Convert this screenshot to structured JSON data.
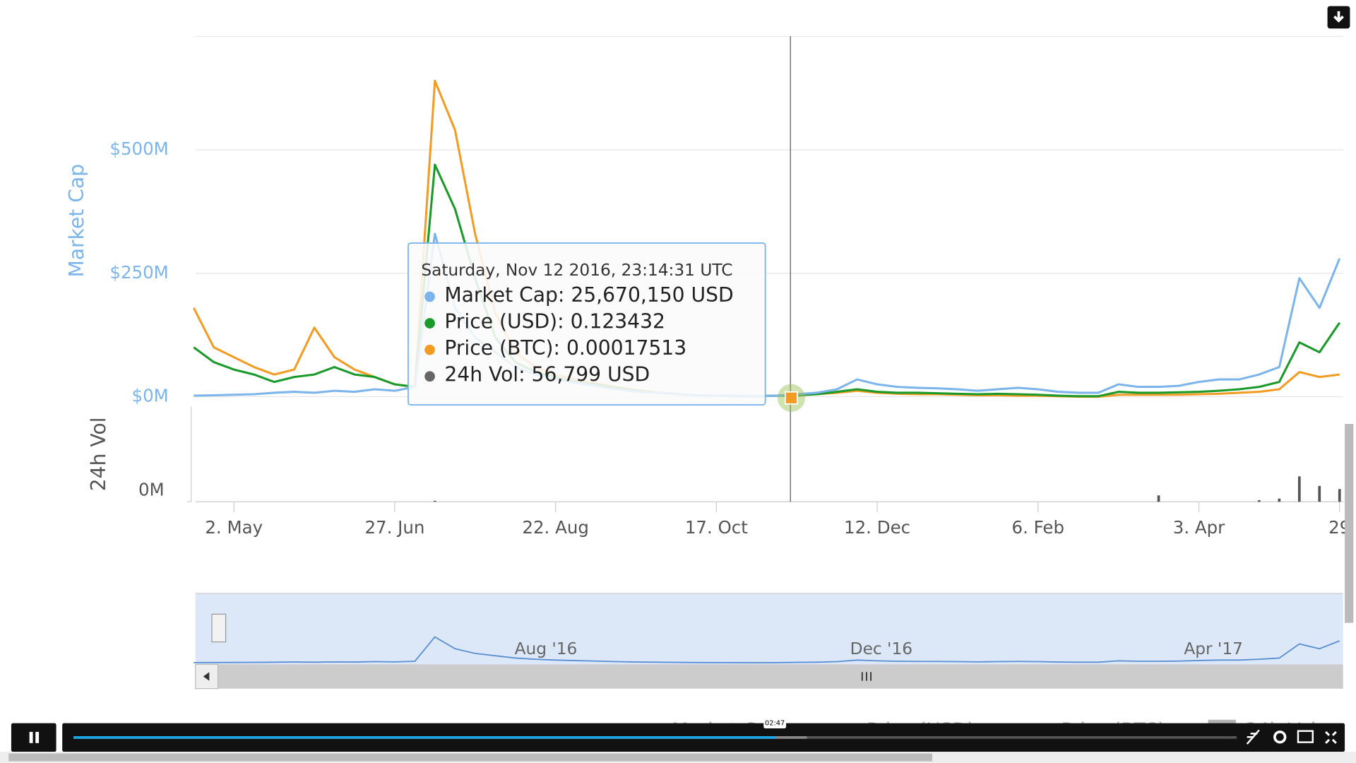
{
  "chart_data": [
    {
      "type": "line",
      "y_label": "Market Cap",
      "categories": [
        null,
        null,
        "2. May",
        null,
        null,
        null,
        null,
        null,
        null,
        null,
        "27. Jun",
        null,
        null,
        null,
        null,
        null,
        null,
        null,
        "22. Aug",
        null,
        null,
        null,
        null,
        null,
        null,
        null,
        "17. Oct",
        null,
        null,
        null,
        null,
        null,
        null,
        null,
        "12. Dec",
        null,
        null,
        null,
        null,
        null,
        null,
        null,
        "6. Feb",
        null,
        null,
        null,
        null,
        null,
        null,
        null,
        "3. Apr",
        null,
        null,
        null,
        null,
        null,
        null,
        "29"
      ],
      "series": [
        {
          "name": "Market Cap",
          "color": "#7cb5ec",
          "values": [
            2,
            3,
            4,
            5,
            8,
            10,
            8,
            12,
            10,
            15,
            12,
            20,
            330,
            180,
            120,
            90,
            60,
            45,
            35,
            28,
            22,
            15,
            10,
            8,
            5,
            3,
            2,
            2,
            1,
            2,
            5,
            8,
            15,
            35,
            25,
            20,
            18,
            17,
            15,
            12,
            15,
            18,
            15,
            10,
            8,
            8,
            25,
            20,
            20,
            22,
            30,
            35,
            35,
            45,
            60,
            240,
            180,
            280
          ]
        },
        {
          "name": "Price (USD)",
          "color": "#1a9a2a",
          "values": [
            100,
            70,
            55,
            45,
            30,
            40,
            45,
            60,
            45,
            40,
            25,
            20,
            470,
            380,
            240,
            120,
            70,
            50,
            40,
            30,
            25,
            18,
            12,
            8,
            5,
            3,
            2,
            1,
            1,
            2,
            3,
            5,
            10,
            15,
            10,
            8,
            8,
            7,
            6,
            5,
            6,
            5,
            4,
            2,
            1,
            1,
            10,
            8,
            8,
            9,
            10,
            12,
            15,
            20,
            30,
            110,
            90,
            150
          ]
        },
        {
          "name": "Price (BTC)",
          "color": "#f39c24",
          "values": [
            180,
            100,
            80,
            60,
            45,
            55,
            140,
            80,
            55,
            40,
            25,
            20,
            640,
            540,
            330,
            170,
            90,
            60,
            45,
            35,
            28,
            20,
            14,
            9,
            6,
            3,
            2,
            1,
            1,
            2,
            3,
            5,
            8,
            12,
            8,
            6,
            5,
            5,
            4,
            3,
            3,
            2,
            2,
            1,
            0,
            0,
            4,
            4,
            4,
            4,
            5,
            6,
            8,
            10,
            15,
            50,
            40,
            45
          ]
        }
      ],
      "ylim": [
        -20,
        730
      ],
      "yticks": [
        {
          "value": 0,
          "label": "$0M"
        },
        {
          "value": 250,
          "label": "$250M"
        },
        {
          "value": 500,
          "label": "$500M"
        }
      ],
      "grid": true
    },
    {
      "type": "bar",
      "y_label": "24h Vol",
      "series": [
        {
          "name": "24h Vol",
          "color": "#555555",
          "values": [
            0,
            0,
            0,
            0,
            0,
            0,
            0,
            0,
            0,
            0,
            0,
            0,
            0.3,
            0,
            0,
            0,
            0,
            0,
            0,
            0,
            0,
            0,
            0,
            0,
            0,
            0,
            0,
            0,
            0,
            0,
            0,
            0,
            0,
            0,
            0,
            0,
            0,
            0,
            0,
            0,
            0,
            0,
            0,
            0,
            0,
            0,
            0,
            0,
            2,
            0,
            0,
            0,
            0,
            0.5,
            1,
            8,
            5,
            4
          ]
        }
      ],
      "ylim": [
        0,
        30
      ],
      "yticks": [
        {
          "value": 0,
          "label": "0M"
        }
      ]
    }
  ],
  "tooltip": {
    "title": "Saturday, Nov 12 2016, 23:14:31 UTC",
    "rows": [
      "Market Cap: 25,670,150 USD",
      "Price (USD): 0.123432",
      "Price (BTC): 0.00017513",
      "24h Vol: 56,799 USD"
    ]
  },
  "navigator": {
    "labels": [
      "Aug '16",
      "Dec '16",
      "Apr '17"
    ]
  },
  "player": {
    "time": "02:47"
  }
}
